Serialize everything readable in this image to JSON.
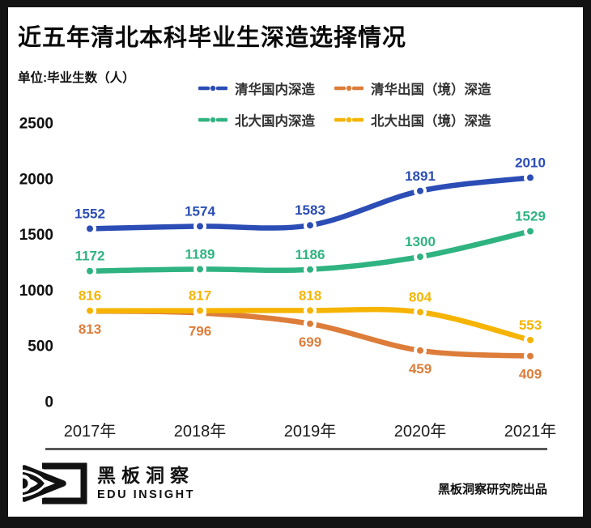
{
  "header": {
    "title": "近五年清北本科毕业生深造选择情况",
    "unit_label": "单位:毕业生数（人）"
  },
  "chart_data": {
    "type": "line",
    "title": "近五年清北本科毕业生深造选择情况",
    "unit": "毕业生数（人）",
    "categories": [
      "2017年",
      "2018年",
      "2019年",
      "2020年",
      "2021年"
    ],
    "series": [
      {
        "name": "清华国内深造",
        "color": "#2b4db5",
        "values": [
          1552,
          1574,
          1583,
          1891,
          2010
        ],
        "label_position": "above"
      },
      {
        "name": "清华出国（境）深造",
        "color": "#dd7d3a",
        "values": [
          813,
          796,
          699,
          459,
          409
        ],
        "label_position": "below"
      },
      {
        "name": "北大国内深造",
        "color": "#2fb381",
        "values": [
          1172,
          1189,
          1186,
          1300,
          1529
        ],
        "label_position": "above"
      },
      {
        "name": "北大出国（境）深造",
        "color": "#f6b402",
        "values": [
          816,
          817,
          818,
          804,
          553
        ],
        "label_position": "above"
      }
    ],
    "y_ticks": [
      0,
      500,
      1000,
      1500,
      2000,
      2500
    ],
    "ylim": [
      0,
      2500
    ],
    "grid": false,
    "legend_position": "top",
    "legend_order": [
      0,
      1,
      2,
      3
    ]
  },
  "footer": {
    "logo_title": "黑板洞察",
    "logo_subtitle": "EDU INSIGHT",
    "credit": "黑板洞察研究院出品"
  }
}
